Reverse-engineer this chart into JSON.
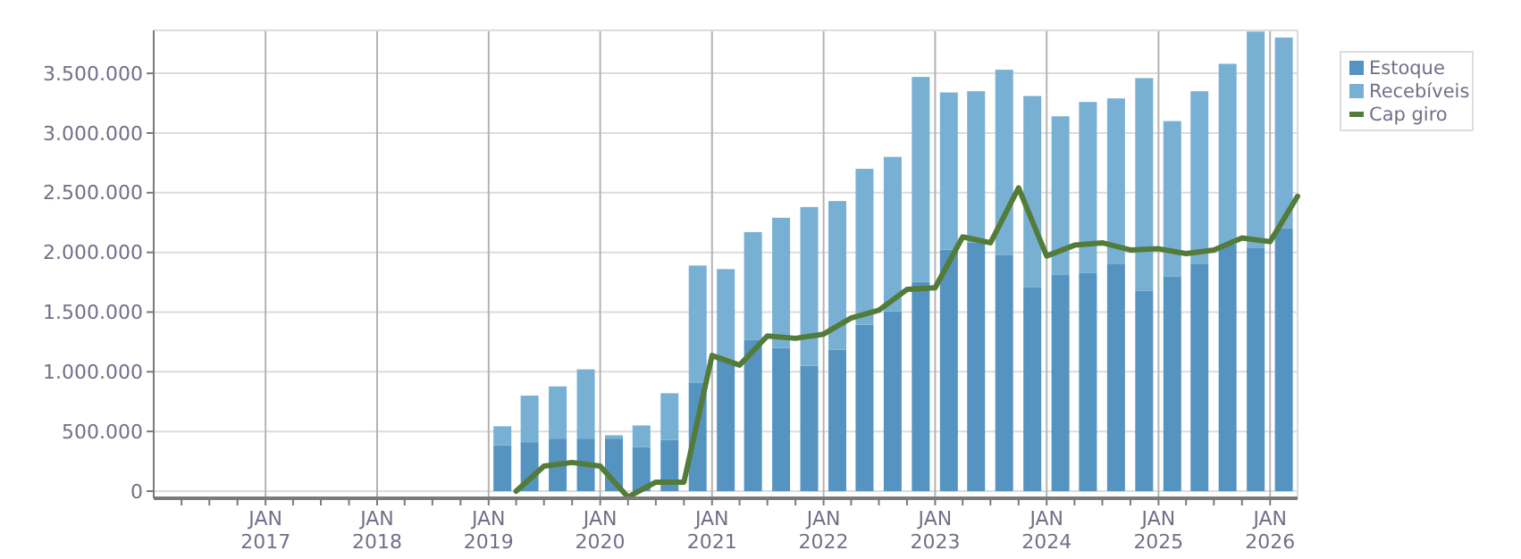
{
  "chart_data": {
    "type": "bar",
    "stacked": true,
    "series": [
      {
        "name": "Estoque",
        "color": "#5593c0",
        "x": [
          "2019-02-15",
          "2019-05-15",
          "2019-08-15",
          "2019-11-15",
          "2020-02-15",
          "2020-05-15",
          "2020-08-15",
          "2020-11-15",
          "2021-02-15",
          "2021-05-15",
          "2021-08-15",
          "2021-11-15",
          "2022-02-15",
          "2022-05-15",
          "2022-08-15",
          "2022-11-15",
          "2023-02-15",
          "2023-05-15",
          "2023-08-15",
          "2023-11-15",
          "2024-02-15",
          "2024-05-15",
          "2024-08-15",
          "2024-11-15",
          "2025-02-15",
          "2025-05-15",
          "2025-08-15",
          "2025-11-15",
          "2026-02-15"
        ],
        "values": [
          384000,
          410000,
          440000,
          440000,
          440000,
          370000,
          430000,
          910000,
          1100000,
          1265000,
          1200000,
          1050000,
          1186000,
          1395000,
          1505000,
          1754000,
          2023000,
          2080000,
          1980000,
          1710000,
          1810000,
          1830000,
          1900000,
          1680000,
          1800000,
          1900000,
          2070000,
          2040000,
          2200000
        ]
      },
      {
        "name": "Recebíveis",
        "color": "#78b0d3",
        "x": [
          "2019-02-15",
          "2019-05-15",
          "2019-08-15",
          "2019-11-15",
          "2020-02-15",
          "2020-05-15",
          "2020-08-15",
          "2020-11-15",
          "2021-02-15",
          "2021-05-15",
          "2021-08-15",
          "2021-11-15",
          "2022-02-15",
          "2022-05-15",
          "2022-08-15",
          "2022-11-15",
          "2023-02-15",
          "2023-05-15",
          "2023-08-15",
          "2023-11-15",
          "2024-02-15",
          "2024-05-15",
          "2024-08-15",
          "2024-11-15",
          "2025-02-15",
          "2025-05-15",
          "2025-08-15",
          "2025-11-15",
          "2026-02-15"
        ],
        "values": [
          159000,
          390000,
          437000,
          580000,
          28000,
          180000,
          390000,
          980000,
          760000,
          905000,
          1090000,
          1330000,
          1244000,
          1305000,
          1295000,
          1716000,
          1317000,
          1270000,
          1550000,
          1600000,
          1330000,
          1430000,
          1390000,
          1780000,
          1300000,
          1450000,
          1510000,
          1810000,
          1600000
        ]
      },
      {
        "name": "Cap giro",
        "type": "line",
        "color": "#537b3a",
        "x": [
          "2019-04-01",
          "2019-07-01",
          "2019-10-01",
          "2020-01-01",
          "2020-04-01",
          "2020-07-01",
          "2020-10-01",
          "2021-01-01",
          "2021-04-01",
          "2021-07-01",
          "2021-10-01",
          "2022-01-01",
          "2022-04-01",
          "2022-07-01",
          "2022-10-01",
          "2023-01-01",
          "2023-04-01",
          "2023-07-01",
          "2023-10-01",
          "2024-01-01",
          "2024-04-01",
          "2024-07-01",
          "2024-10-01",
          "2025-01-01",
          "2025-04-01",
          "2025-07-01",
          "2025-10-01",
          "2026-01-01",
          "2026-04-01"
        ],
        "values": [
          0,
          210000,
          240000,
          210000,
          -50000,
          75000,
          75000,
          1136000,
          1056000,
          1300000,
          1280000,
          1315000,
          1450000,
          1515000,
          1690000,
          1704000,
          2130000,
          2080000,
          2540000,
          1970000,
          2060000,
          2080000,
          2020000,
          2030000,
          1990000,
          2020000,
          2120000,
          2090000,
          2470000
        ]
      }
    ],
    "xlim": [
      "2016-01-01",
      "2026-04-01"
    ],
    "xticks": [
      {
        "value": "2016-04-01",
        "label": null
      },
      {
        "value": "2016-07-01",
        "label": null
      },
      {
        "value": "2016-10-01",
        "label": null
      },
      {
        "value": "2017-01-01",
        "label": "JAN\n2017"
      },
      {
        "value": "2017-04-01",
        "label": null
      },
      {
        "value": "2017-07-01",
        "label": null
      },
      {
        "value": "2017-10-01",
        "label": null
      },
      {
        "value": "2018-01-01",
        "label": "JAN\n2018"
      },
      {
        "value": "2018-04-01",
        "label": null
      },
      {
        "value": "2018-07-01",
        "label": null
      },
      {
        "value": "2018-10-01",
        "label": null
      },
      {
        "value": "2019-01-01",
        "label": "JAN\n2019"
      },
      {
        "value": "2019-04-01",
        "label": null
      },
      {
        "value": "2019-07-01",
        "label": null
      },
      {
        "value": "2019-10-01",
        "label": null
      },
      {
        "value": "2020-01-01",
        "label": "JAN\n2020"
      },
      {
        "value": "2020-04-01",
        "label": null
      },
      {
        "value": "2020-07-01",
        "label": null
      },
      {
        "value": "2020-10-01",
        "label": null
      },
      {
        "value": "2021-01-01",
        "label": "JAN\n2021"
      },
      {
        "value": "2021-04-01",
        "label": null
      },
      {
        "value": "2021-07-01",
        "label": null
      },
      {
        "value": "2021-10-01",
        "label": null
      },
      {
        "value": "2022-01-01",
        "label": "JAN\n2022"
      },
      {
        "value": "2022-04-01",
        "label": null
      },
      {
        "value": "2022-07-01",
        "label": null
      },
      {
        "value": "2022-10-01",
        "label": null
      },
      {
        "value": "2023-01-01",
        "label": "JAN\n2023"
      },
      {
        "value": "2023-04-01",
        "label": null
      },
      {
        "value": "2023-07-01",
        "label": null
      },
      {
        "value": "2023-10-01",
        "label": null
      },
      {
        "value": "2024-01-01",
        "label": "JAN\n2024"
      },
      {
        "value": "2024-04-01",
        "label": null
      },
      {
        "value": "2024-07-01",
        "label": null
      },
      {
        "value": "2024-10-01",
        "label": null
      },
      {
        "value": "2025-01-01",
        "label": "JAN\n2025"
      },
      {
        "value": "2025-04-01",
        "label": null
      },
      {
        "value": "2025-07-01",
        "label": null
      },
      {
        "value": "2025-10-01",
        "label": null
      },
      {
        "value": "2026-01-01",
        "label": "JAN\n2026"
      }
    ],
    "ylim": [
      -60000,
      3860000
    ],
    "yticks": [
      {
        "value": 0,
        "label": "0"
      },
      {
        "value": 500000,
        "label": "500.000"
      },
      {
        "value": 1000000,
        "label": "1.000.000"
      },
      {
        "value": 1500000,
        "label": "1.500.000"
      },
      {
        "value": 2000000,
        "label": "2.000.000"
      },
      {
        "value": 2500000,
        "label": "2.500.000"
      },
      {
        "value": 3000000,
        "label": "3.000.000"
      },
      {
        "value": 3500000,
        "label": "3.500.000"
      }
    ],
    "grid": true,
    "legend": "top right",
    "marker": "none",
    "line_style": "solid"
  }
}
